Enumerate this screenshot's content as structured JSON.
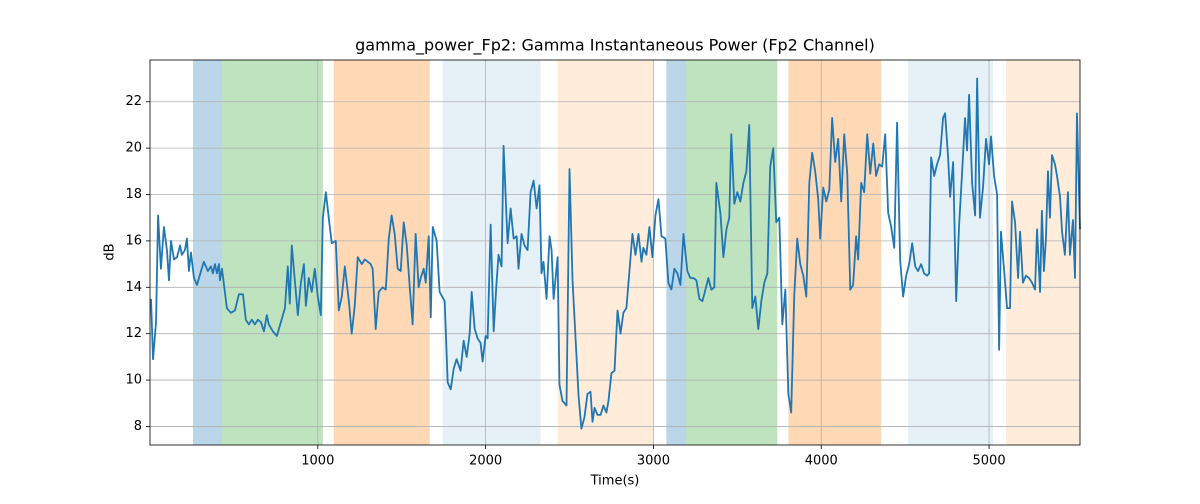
{
  "chart_data": {
    "type": "line",
    "title": "gamma_power_Fp2: Gamma Instantaneous Power (Fp2 Channel)",
    "xlabel": "Time(s)",
    "ylabel": "dB",
    "xlim": [
      0,
      5542
    ],
    "ylim": [
      7.2,
      23.8
    ],
    "xticks": [
      1000,
      2000,
      3000,
      4000,
      5000
    ],
    "yticks": [
      8,
      10,
      12,
      14,
      16,
      18,
      20,
      22
    ],
    "grid": true,
    "color": "#1f77b4",
    "spans": [
      {
        "start": 256,
        "end": 429,
        "color": "#1f77b4",
        "opacity": 0.3
      },
      {
        "start": 429,
        "end": 1030,
        "color": "#2ca02c",
        "opacity": 0.3
      },
      {
        "start": 1095,
        "end": 1667,
        "color": "#ff7f0e",
        "opacity": 0.3
      },
      {
        "start": 1744,
        "end": 2327,
        "color": "#1f77b4",
        "opacity": 0.11
      },
      {
        "start": 2429,
        "end": 3000,
        "color": "#ff7f0e",
        "opacity": 0.15
      },
      {
        "start": 3077,
        "end": 3196,
        "color": "#1f77b4",
        "opacity": 0.3
      },
      {
        "start": 3196,
        "end": 3738,
        "color": "#2ca02c",
        "opacity": 0.3
      },
      {
        "start": 3804,
        "end": 4357,
        "color": "#ff7f0e",
        "opacity": 0.3
      },
      {
        "start": 4518,
        "end": 5024,
        "color": "#1f77b4",
        "opacity": 0.11
      },
      {
        "start": 5101,
        "end": 5542,
        "color": "#ff7f0e",
        "opacity": 0.15
      }
    ],
    "x": [
      6,
      18,
      36,
      48,
      65,
      83,
      101,
      113,
      125,
      143,
      161,
      179,
      190,
      208,
      220,
      232,
      244,
      262,
      280,
      304,
      321,
      345,
      363,
      375,
      387,
      399,
      411,
      417,
      429,
      446,
      458,
      482,
      506,
      530,
      554,
      571,
      589,
      607,
      625,
      643,
      661,
      679,
      696,
      708,
      732,
      756,
      780,
      804,
      821,
      833,
      845,
      863,
      881,
      899,
      917,
      929,
      946,
      964,
      982,
      1000,
      1018,
      1030,
      1048,
      1065,
      1083,
      1107,
      1125,
      1143,
      1161,
      1185,
      1202,
      1220,
      1238,
      1262,
      1280,
      1298,
      1315,
      1327,
      1345,
      1363,
      1387,
      1405,
      1423,
      1440,
      1458,
      1476,
      1494,
      1512,
      1530,
      1548,
      1565,
      1583,
      1601,
      1613,
      1631,
      1643,
      1661,
      1673,
      1685,
      1708,
      1726,
      1756,
      1774,
      1792,
      1810,
      1827,
      1851,
      1869,
      1887,
      1905,
      1917,
      1935,
      1952,
      1970,
      1982,
      2000,
      2012,
      2030,
      2048,
      2065,
      2077,
      2095,
      2107,
      2131,
      2149,
      2167,
      2185,
      2196,
      2214,
      2232,
      2250,
      2268,
      2286,
      2304,
      2321,
      2333,
      2345,
      2363,
      2381,
      2393,
      2405,
      2429,
      2440,
      2458,
      2482,
      2500,
      2518,
      2536,
      2554,
      2571,
      2589,
      2607,
      2625,
      2637,
      2649,
      2667,
      2685,
      2702,
      2720,
      2732,
      2750,
      2768,
      2786,
      2804,
      2821,
      2839,
      2857,
      2875,
      2893,
      2911,
      2929,
      2940,
      2958,
      2976,
      2994,
      3012,
      3030,
      3048,
      3071,
      3089,
      3107,
      3125,
      3143,
      3161,
      3179,
      3202,
      3220,
      3238,
      3256,
      3274,
      3292,
      3310,
      3327,
      3345,
      3363,
      3375,
      3399,
      3417,
      3435,
      3452,
      3464,
      3482,
      3500,
      3518,
      3536,
      3554,
      3571,
      3589,
      3607,
      3625,
      3643,
      3661,
      3679,
      3696,
      3714,
      3732,
      3750,
      3768,
      3786,
      3804,
      3821,
      3839,
      3857,
      3875,
      3893,
      3911,
      3929,
      3946,
      3964,
      3982,
      3994,
      4012,
      4030,
      4048,
      4065,
      4083,
      4101,
      4119,
      4137,
      4155,
      4173,
      4190,
      4208,
      4220,
      4238,
      4256,
      4274,
      4292,
      4310,
      4327,
      4345,
      4363,
      4381,
      4399,
      4417,
      4435,
      4452,
      4470,
      4488,
      4506,
      4524,
      4542,
      4560,
      4577,
      4595,
      4613,
      4631,
      4643,
      4655,
      4673,
      4690,
      4708,
      4726,
      4738,
      4756,
      4768,
      4786,
      4804,
      4821,
      4839,
      4857,
      4869,
      4881,
      4899,
      4917,
      4929,
      4946,
      4964,
      4982,
      5000,
      5012,
      5030,
      5048,
      5060,
      5071,
      5089,
      5107,
      5125,
      5137,
      5155,
      5173,
      5185,
      5202,
      5220,
      5238,
      5256,
      5274,
      5286,
      5304,
      5315,
      5327,
      5339,
      5351,
      5363,
      5375,
      5393,
      5405,
      5423,
      5435,
      5452,
      5470,
      5482,
      5500,
      5512,
      5524,
      5542
    ],
    "values": [
      13.5,
      10.9,
      12.5,
      17.1,
      14.8,
      16.6,
      15.6,
      14.3,
      16.0,
      15.2,
      15.3,
      15.8,
      15.4,
      15.6,
      16.1,
      14.7,
      15.5,
      14.4,
      14.1,
      14.7,
      15.1,
      14.7,
      14.9,
      14.6,
      15.0,
      14.6,
      15.0,
      14.3,
      14.8,
      13.8,
      13.1,
      12.9,
      13.0,
      13.7,
      13.7,
      12.6,
      12.4,
      12.6,
      12.4,
      12.6,
      12.5,
      12.1,
      12.8,
      12.4,
      12.1,
      11.9,
      12.5,
      13.1,
      14.9,
      13.3,
      15.8,
      14.3,
      12.8,
      14.2,
      15.0,
      13.2,
      14.4,
      13.8,
      14.8,
      13.6,
      12.8,
      17.0,
      18.1,
      17.0,
      15.9,
      16.0,
      13.0,
      13.6,
      14.9,
      13.4,
      12.0,
      13.2,
      15.3,
      15.0,
      15.2,
      15.1,
      15.0,
      14.8,
      12.2,
      13.8,
      14.0,
      13.9,
      16.1,
      17.1,
      16.3,
      14.8,
      14.7,
      16.8,
      15.8,
      14.0,
      12.4,
      16.3,
      14.0,
      14.4,
      14.8,
      14.2,
      16.2,
      12.7,
      16.6,
      16.0,
      13.8,
      13.4,
      9.9,
      9.6,
      10.5,
      10.9,
      10.4,
      11.7,
      11.0,
      12.0,
      13.8,
      12.2,
      11.8,
      11.6,
      10.8,
      11.9,
      11.8,
      16.7,
      12.1,
      14.2,
      15.4,
      14.9,
      20.1,
      15.9,
      17.4,
      16.1,
      16.2,
      14.8,
      16.3,
      15.8,
      15.6,
      18.1,
      18.6,
      17.4,
      18.4,
      14.6,
      15.1,
      13.5,
      16.2,
      15.6,
      13.5,
      15.3,
      9.8,
      9.1,
      8.9,
      19.1,
      14.3,
      11.8,
      9.3,
      7.9,
      8.4,
      9.4,
      9.5,
      8.2,
      8.8,
      8.5,
      8.5,
      8.9,
      8.6,
      9.1,
      10.3,
      10.4,
      13.0,
      12.0,
      12.9,
      13.1,
      14.7,
      16.3,
      15.4,
      16.3,
      15.1,
      15.7,
      15.4,
      16.6,
      15.3,
      17.1,
      17.8,
      16.2,
      16.1,
      14.2,
      13.9,
      14.8,
      14.6,
      14.1,
      16.3,
      14.7,
      14.4,
      14.4,
      14.3,
      13.5,
      13.4,
      13.9,
      14.4,
      13.9,
      14.0,
      18.5,
      17.2,
      15.3,
      16.5,
      17.0,
      20.6,
      17.6,
      18.1,
      17.7,
      18.5,
      19.0,
      21.0,
      13.1,
      13.6,
      12.2,
      13.4,
      14.2,
      14.6,
      19.2,
      20.0,
      16.8,
      17.0,
      12.4,
      13.9,
      9.4,
      8.6,
      13.6,
      16.1,
      15.0,
      14.5,
      13.6,
      18.5,
      19.8,
      19.0,
      17.8,
      16.1,
      18.3,
      17.7,
      18.2,
      21.3,
      19.4,
      20.4,
      17.7,
      20.6,
      18.9,
      13.9,
      14.1,
      16.2,
      15.2,
      18.5,
      18.1,
      20.6,
      18.9,
      20.2,
      18.8,
      19.3,
      19.2,
      20.6,
      17.2,
      16.6,
      15.7,
      21.1,
      15.2,
      13.6,
      14.5,
      15.0,
      15.9,
      14.9,
      14.7,
      15.0,
      14.6,
      14.5,
      14.6,
      19.6,
      18.8,
      19.3,
      19.7,
      21.3,
      21.5,
      19.6,
      17.9,
      19.4,
      13.4,
      16.6,
      18.9,
      21.3,
      19.9,
      22.3,
      18.5,
      17.1,
      23.0,
      17.0,
      18.3,
      20.4,
      19.3,
      20.5,
      18.8,
      18.0,
      11.3,
      16.4,
      14.8,
      13.1,
      13.1,
      17.7,
      16.8,
      14.4,
      16.4,
      14.2,
      14.5,
      14.4,
      14.2,
      13.9,
      16.5,
      13.8,
      17.3,
      14.7,
      16.1,
      19.0,
      17.0,
      19.7,
      19.3,
      18.8,
      17.9,
      16.4,
      15.4,
      18.1,
      15.4,
      16.9,
      14.4,
      21.5,
      16.5
    ]
  }
}
